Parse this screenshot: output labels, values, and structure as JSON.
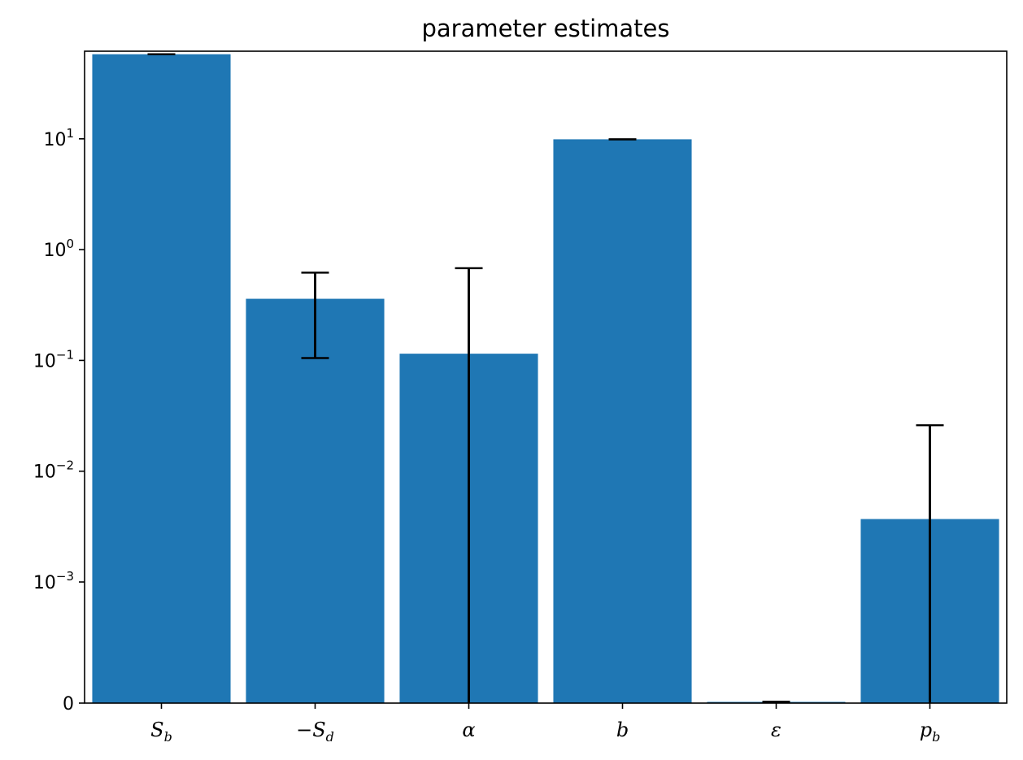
{
  "chart_data": {
    "type": "bar",
    "title": "parameter estimates",
    "xlabel": "",
    "ylabel": "",
    "yscale": "symlog",
    "linthresh": 0.001,
    "ylim": [
      0,
      60
    ],
    "yticks": [
      {
        "value": 0,
        "base": "0",
        "exp": ""
      },
      {
        "value": 0.001,
        "base": "10",
        "exp": "−3"
      },
      {
        "value": 0.01,
        "base": "10",
        "exp": "−2"
      },
      {
        "value": 0.1,
        "base": "10",
        "exp": "−1"
      },
      {
        "value": 1,
        "base": "10",
        "exp": "0"
      },
      {
        "value": 10,
        "base": "10",
        "exp": "1"
      }
    ],
    "categories": [
      {
        "main": "S",
        "sub": "b"
      },
      {
        "main": "−S",
        "sub": "d"
      },
      {
        "main": "α",
        "sub": ""
      },
      {
        "main": "b",
        "sub": ""
      },
      {
        "main": "ε",
        "sub": ""
      },
      {
        "main": "p",
        "sub": "b"
      }
    ],
    "values": [
      58,
      0.36,
      0.115,
      9.9,
      1e-05,
      0.0037
    ],
    "errors": [
      {
        "low": 58,
        "high": 58
      },
      {
        "low": 0.105,
        "high": 0.62
      },
      {
        "low": 0,
        "high": 0.68
      },
      {
        "low": 9.9,
        "high": 9.9
      },
      {
        "low": 1e-05,
        "high": 1e-05
      },
      {
        "low": 0,
        "high": 0.026
      }
    ],
    "grid": false,
    "legend": "none",
    "bar_color": "#1f77b4",
    "error_color": "#000000"
  }
}
